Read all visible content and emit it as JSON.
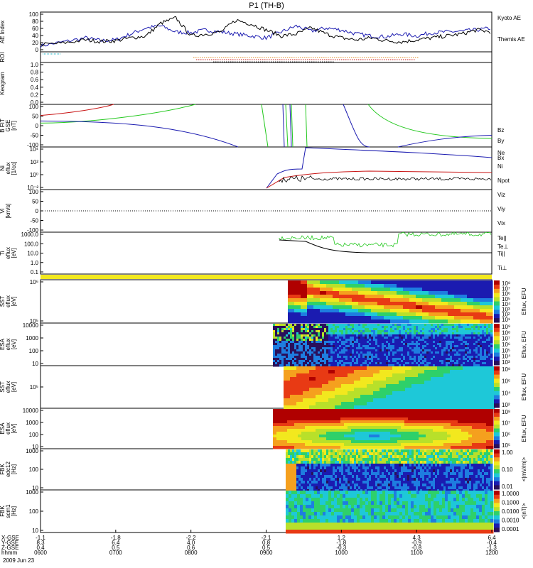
{
  "title": "P1 (TH-B)",
  "date": "2009 Jun 23",
  "colors": {
    "blue": "#1b1bb0",
    "black": "#000000",
    "red": "#c81414",
    "green": "#23c81e",
    "cyan": "#17b4c8",
    "orange": "#e08a1e",
    "yellow": "#f2e81e"
  },
  "chart_data": [
    {
      "panel": "ae",
      "type": "line",
      "ylabel": "AE Index",
      "ylim": [
        0,
        100
      ],
      "yticks": [
        "0",
        "20",
        "40",
        "60",
        "80",
        "100"
      ],
      "x_hours": [
        6.0,
        6.3,
        6.6,
        6.8,
        7.0,
        7.2,
        7.4,
        7.6,
        7.8,
        8.0,
        8.2,
        8.4,
        8.6,
        8.8,
        9.0,
        9.2,
        9.4,
        9.6,
        9.8,
        10.0,
        10.2,
        10.4,
        10.6,
        10.8,
        11.0,
        11.2,
        11.4,
        11.6,
        11.8,
        12.0
      ],
      "series": [
        {
          "name": "Kyoto AE",
          "color": "blue",
          "values": [
            15,
            25,
            35,
            28,
            30,
            45,
            60,
            65,
            50,
            48,
            55,
            50,
            45,
            40,
            35,
            50,
            65,
            52,
            60,
            55,
            45,
            40,
            38,
            45,
            40,
            48,
            50,
            52,
            55,
            60
          ]
        },
        {
          "name": "Themis AE",
          "color": "black",
          "values": [
            18,
            22,
            30,
            26,
            28,
            35,
            40,
            72,
            85,
            40,
            45,
            50,
            80,
            70,
            55,
            40,
            45,
            60,
            45,
            35,
            30,
            35,
            28,
            25,
            30,
            35,
            40,
            45,
            55,
            50
          ]
        }
      ]
    },
    {
      "panel": "roi",
      "type": "line",
      "ylabel": "ROI",
      "ylim": [
        0,
        1
      ]
    },
    {
      "panel": "keogram",
      "type": "line",
      "ylabel": "Keogram",
      "ylim": [
        0,
        1.0
      ],
      "yticks": [
        "0.0",
        "0.2",
        "0.4",
        "0.6",
        "0.8",
        "1.0"
      ]
    },
    {
      "panel": "bfield",
      "type": "line",
      "ylabel": "B FIT\nGSE\n[nT]",
      "ylim": [
        -100,
        100
      ],
      "yticks": [
        "-100",
        "-50",
        "0",
        "50",
        "100"
      ],
      "series": [
        {
          "name": "Bz",
          "color": "red"
        },
        {
          "name": "By",
          "color": "green"
        },
        {
          "name": "Bx",
          "color": "blue"
        }
      ]
    },
    {
      "panel": "density",
      "type": "line",
      "ylabel": "Ni\neflux\n[1/cc]",
      "yticks": [
        "10⁻²",
        "10⁰",
        "10²",
        "10⁴"
      ],
      "series": [
        {
          "name": "Ne",
          "color": "red"
        },
        {
          "name": "Ni",
          "color": "black"
        },
        {
          "name": "Npot",
          "color": "blue"
        }
      ]
    },
    {
      "panel": "velocity",
      "type": "line",
      "ylabel": "Vi\n[km/s]",
      "ylim": [
        -100,
        100
      ],
      "yticks": [
        "-100",
        "-50",
        "0",
        "50",
        "100"
      ],
      "series": [
        {
          "name": "Viz",
          "color": "red"
        },
        {
          "name": "Viy",
          "color": "green"
        },
        {
          "name": "Vix",
          "color": "blue"
        }
      ]
    },
    {
      "panel": "temperature",
      "type": "line",
      "ylabel": "Ti\neflux\n[eV]",
      "yticks": [
        "0.1",
        "1.0",
        "10.0",
        "100.0",
        "1000.0"
      ],
      "series": [
        {
          "name": "Te||",
          "color": "black"
        },
        {
          "name": "Te⊥",
          "color": "red"
        },
        {
          "name": "Ti||",
          "color": "green"
        },
        {
          "name": "Ti⊥",
          "color": "blue"
        }
      ]
    },
    {
      "panel": "sst_e",
      "type": "heatmap",
      "ylabel": "SST\neflux\n[eV]",
      "yticks": [
        "10⁵",
        "10⁶"
      ],
      "colorbar": "Eflux, EFU",
      "cticks": [
        "10⁸",
        "10⁷",
        "10⁶",
        "10⁵",
        "10⁴",
        "10³",
        "10²",
        "10¹"
      ]
    },
    {
      "panel": "esa_e",
      "type": "heatmap",
      "ylabel": "ESA\neflux\n[eV]",
      "yticks": [
        "10",
        "100",
        "1000",
        "10000"
      ],
      "colorbar": "Eflux, EFU",
      "cticks": [
        "10⁹",
        "10⁸",
        "10⁷",
        "10⁶",
        "10⁵",
        "10⁴",
        "10³"
      ]
    },
    {
      "panel": "sst_i",
      "type": "heatmap",
      "ylabel": "SST\neflux\n[eV]",
      "yticks": [
        "10⁵"
      ],
      "colorbar": "Eflux, EFU",
      "cticks": [
        "10⁸",
        "10⁶",
        "10⁴",
        "10²"
      ]
    },
    {
      "panel": "esa_i",
      "type": "heatmap",
      "ylabel": "ESA\neflux\n[eV]",
      "yticks": [
        "10",
        "100",
        "1000",
        "10000"
      ],
      "colorbar": "Eflux, EFU",
      "cticks": [
        "10⁸",
        "10⁷",
        "10⁶",
        "10⁵"
      ]
    },
    {
      "panel": "fbk_edc",
      "type": "heatmap",
      "ylabel": "FBK\nedc12\n[Hz]",
      "yticks": [
        "10",
        "100",
        "1000"
      ],
      "colorbar": "<|mV/m|>",
      "cticks": [
        "1.00",
        "0.10",
        "0.01"
      ]
    },
    {
      "panel": "fbk_scm",
      "type": "heatmap",
      "ylabel": "FBK\nscm1\n[Hz]",
      "yticks": [
        "10",
        "100",
        "1000"
      ],
      "colorbar": "<|nT|>",
      "cticks": [
        "1.0000",
        "0.1000",
        "0.0100",
        "0.0010",
        "0.0001"
      ]
    }
  ],
  "xaxis": {
    "row_labels": [
      "X-GSE",
      "Y-GSE",
      "Z-GSE",
      "hhmm"
    ],
    "columns": [
      {
        "x": "-1.1",
        "y": "8.3",
        "z": "0.4",
        "t": "0600"
      },
      {
        "x": "-1.8",
        "y": "6.4",
        "z": "0.5",
        "t": "0700"
      },
      {
        "x": "-2.2",
        "y": "4.0",
        "z": "0.6",
        "t": "0800"
      },
      {
        "x": "-2.1",
        "y": "0.8",
        "z": "0.5",
        "t": "0900"
      },
      {
        "x": "1.2",
        "y": "-1.8",
        "z": "-0.3",
        "t": "1000"
      },
      {
        "x": "4.3",
        "y": "-0.9",
        "z": "-0.8",
        "t": "1100"
      },
      {
        "x": "6.4",
        "y": "-0.4",
        "z": "-1.3",
        "t": "1200"
      }
    ]
  }
}
